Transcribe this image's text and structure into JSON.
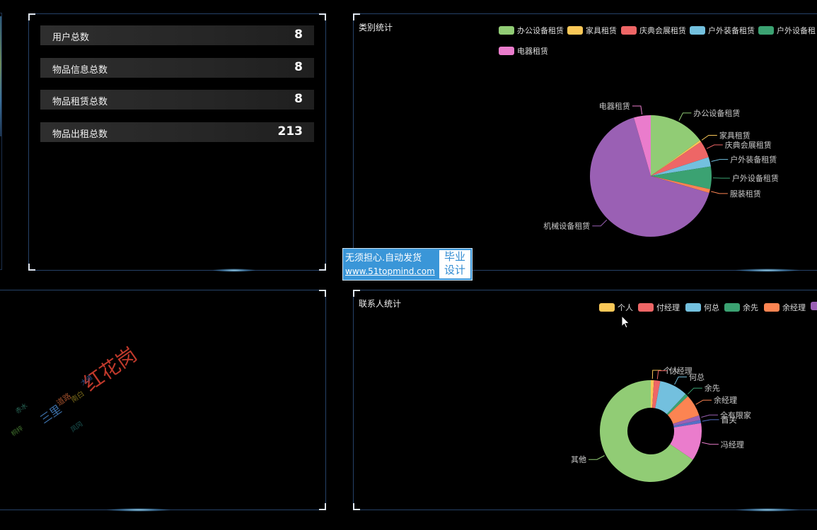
{
  "stats": [
    {
      "label": "用户总数",
      "value": "8"
    },
    {
      "label": "物品信息总数",
      "value": "8"
    },
    {
      "label": "物品租赁总数",
      "value": "8"
    },
    {
      "label": "物品出租总数",
      "value": "213"
    }
  ],
  "category_panel": {
    "title": "类别统计",
    "legend": [
      "办公设备租赁",
      "家具租赁",
      "庆典会展租赁",
      "户外装备租赁",
      "户外设备租",
      "电器租赁"
    ]
  },
  "contact_panel": {
    "title": "联系人统计",
    "legend": [
      "个人",
      "付经理",
      "何总",
      "余先",
      "余经理"
    ]
  },
  "word_cloud": {
    "words": [
      "红花岗",
      "三里",
      "道路",
      "南白",
      "大道",
      "赤水",
      "桐梓",
      "凤冈"
    ]
  },
  "ad_banner": {
    "line1": "无须担心.自动发货",
    "url": "www.51topmind.com",
    "badge1": "毕业",
    "badge2": "设计"
  },
  "chart_data": [
    {
      "type": "pie",
      "title": "类别统计",
      "categories": [
        "办公设备租赁",
        "家具租赁",
        "庆典会展租赁",
        "户外装备租赁",
        "户外设备租赁",
        "服装租赁",
        "机械设备租赁",
        "电器租赁"
      ],
      "values": [
        15,
        0.5,
        4.5,
        2.5,
        6,
        1,
        66,
        4.5
      ],
      "colors": [
        "#91cc75",
        "#fac858",
        "#ee6666",
        "#73c0de",
        "#3ba272",
        "#fc8452",
        "#9a60b4",
        "#ea7ccc"
      ]
    },
    {
      "type": "pie",
      "title": "联系人统计",
      "categories": [
        "个人",
        "付经理",
        "何总",
        "余先",
        "余经理",
        "全有限家",
        "首关",
        "冯经理",
        "其他"
      ],
      "values": [
        1,
        2,
        9,
        1,
        7,
        1.5,
        1,
        12,
        65.5
      ],
      "colors": [
        "#fac858",
        "#ee6666",
        "#73c0de",
        "#3ba272",
        "#fc8452",
        "#9a60b4",
        "#5470c6",
        "#ea7ccc",
        "#91cc75"
      ]
    }
  ]
}
